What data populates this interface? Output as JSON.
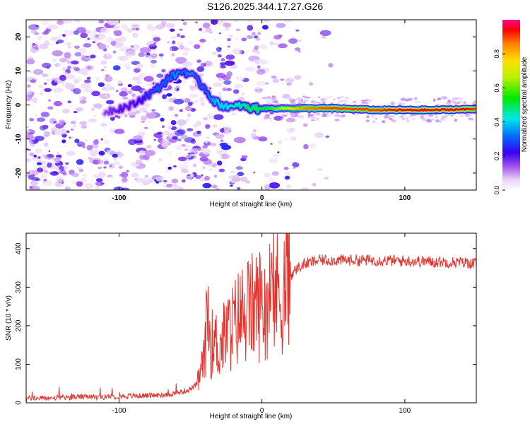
{
  "title": "S126.2025.344.17.27.G26",
  "chart_data": [
    {
      "type": "heatmap",
      "title": "S126.2025.344.17.27.G26",
      "xlabel": "Height of straight line (km)",
      "ylabel": "Frequency (Hz)",
      "xlim": [
        -165,
        150
      ],
      "ylim": [
        -25,
        25
      ],
      "xticks": [
        -100,
        0,
        100
      ],
      "xtick_labels": [
        "-100",
        "0",
        "100"
      ],
      "yticks": [
        -20,
        -10,
        0,
        10,
        20
      ],
      "ytick_labels": [
        "-20",
        "-10",
        "0",
        "10",
        "20"
      ],
      "colorbar": {
        "label": "Normalized spectral amplitude",
        "range": [
          0.0,
          1.0
        ],
        "ticks": [
          0.0,
          0.2,
          0.4,
          0.6,
          0.8
        ],
        "tick_labels": [
          "0.0",
          "0.2",
          "0.4",
          "0.6",
          "0.8"
        ]
      },
      "ridge": {
        "x": [
          -110,
          -100,
          -90,
          -80,
          -75,
          -70,
          -65,
          -60,
          -55,
          -50,
          -45,
          -40,
          -35,
          -30,
          -25,
          -20,
          -15,
          -10,
          -5,
          0,
          10,
          20,
          30,
          50,
          80,
          100,
          120,
          140,
          150
        ],
        "y": [
          -2,
          -1,
          0,
          3,
          4,
          6,
          8,
          9,
          10,
          9,
          7,
          5,
          2,
          0,
          0,
          -1,
          0,
          -1,
          -1,
          -1,
          -1,
          -1,
          -1,
          -1,
          -1.5,
          -1.5,
          -1.5,
          -1.3,
          -1.2
        ],
        "amplitude": [
          0.15,
          0.2,
          0.2,
          0.25,
          0.3,
          0.3,
          0.3,
          0.35,
          0.3,
          0.35,
          0.3,
          0.3,
          0.35,
          0.4,
          0.4,
          0.45,
          0.45,
          0.5,
          0.5,
          0.5,
          0.6,
          0.75,
          0.85,
          0.9,
          0.9,
          0.95,
          0.95,
          0.95,
          0.9
        ]
      }
    },
    {
      "type": "line",
      "xlabel": "Height of straight line (km)",
      "ylabel": "SNR (10 * v/v)",
      "xlim": [
        -165,
        150
      ],
      "ylim": [
        0,
        440
      ],
      "xticks": [
        -100,
        0,
        100
      ],
      "xtick_labels": [
        "-100",
        "0",
        "100"
      ],
      "yticks": [
        0,
        100,
        200,
        300,
        400
      ],
      "ytick_labels": [
        "0",
        "100",
        "200",
        "300",
        "400"
      ],
      "series": [
        {
          "name": "SNR",
          "color": "#e8302a",
          "x": [
            -165,
            -150,
            -130,
            -110,
            -90,
            -70,
            -60,
            -50,
            -45,
            -40,
            -38,
            -36,
            -33,
            -30,
            -25,
            -20,
            -15,
            -10,
            -5,
            0,
            5,
            10,
            13,
            15,
            20,
            25,
            30,
            40,
            50,
            60,
            80,
            100,
            120,
            140,
            150
          ],
          "y": [
            12,
            12,
            15,
            15,
            18,
            20,
            25,
            35,
            50,
            120,
            250,
            150,
            160,
            140,
            180,
            200,
            230,
            240,
            250,
            260,
            270,
            290,
            280,
            300,
            330,
            350,
            360,
            370,
            370,
            370,
            370,
            368,
            366,
            364,
            362
          ]
        }
      ]
    }
  ]
}
